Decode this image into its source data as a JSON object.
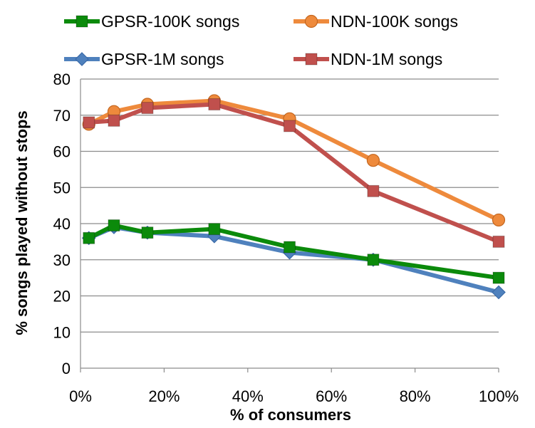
{
  "chart_data": {
    "type": "line",
    "title": "",
    "xlabel": "% of consumers",
    "ylabel": "% songs played without  stops",
    "xlim": [
      0,
      100
    ],
    "ylim": [
      0,
      80
    ],
    "x_ticks": [
      0,
      20,
      40,
      60,
      80,
      100
    ],
    "x_tick_labels": [
      "0%",
      "20%",
      "40%",
      "60%",
      "80%",
      "100%"
    ],
    "y_ticks": [
      0,
      10,
      20,
      30,
      40,
      50,
      60,
      70,
      80
    ],
    "y_tick_labels": [
      "0",
      "10",
      "20",
      "30",
      "40",
      "50",
      "60",
      "70",
      "80"
    ],
    "grid": "horizontal",
    "legend_position": "top",
    "x": [
      2,
      8,
      16,
      32,
      50,
      70,
      100
    ],
    "series": [
      {
        "name": "GPSR-100K songs",
        "color": "#0b8a0b",
        "marker": "square",
        "values": [
          36,
          39.5,
          37.5,
          38.5,
          33.5,
          30,
          25
        ]
      },
      {
        "name": "NDN-100K songs",
        "color": "#ee8a3c",
        "marker": "circle",
        "values": [
          67.5,
          71,
          73,
          74,
          69,
          57.5,
          41
        ]
      },
      {
        "name": "GPSR-1M songs",
        "color": "#4f81bd",
        "marker": "diamond",
        "values": [
          36,
          39,
          37.5,
          36.5,
          32,
          30,
          21
        ]
      },
      {
        "name": "NDN-1M songs",
        "color": "#c0504d",
        "marker": "square",
        "values": [
          68,
          68.5,
          72,
          73,
          67,
          49,
          35
        ]
      }
    ]
  }
}
